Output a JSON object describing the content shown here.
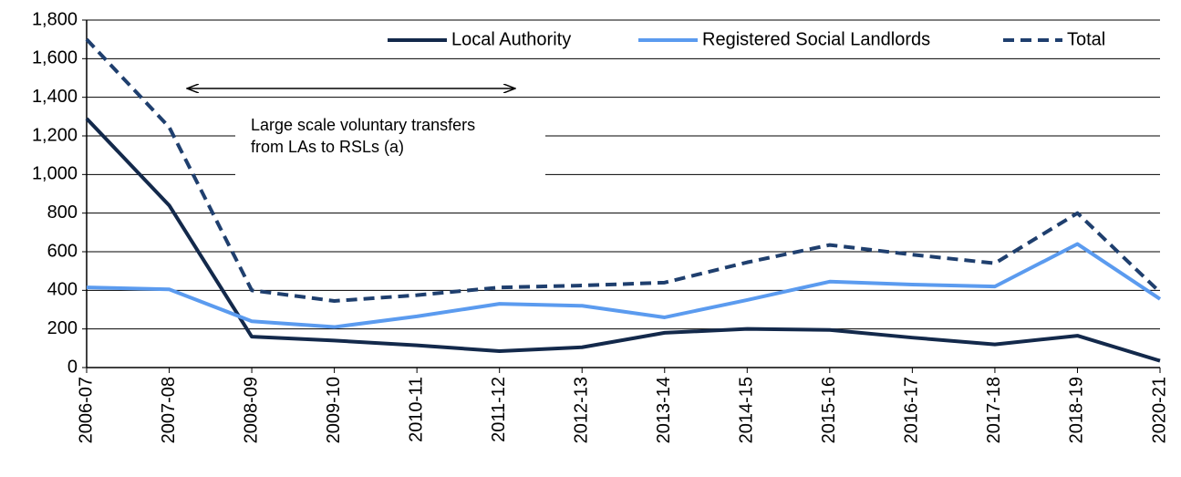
{
  "chart_data": {
    "type": "line",
    "categories": [
      "2006-07",
      "2007-08",
      "2008-09",
      "2009-10",
      "2010-11",
      "2011-12",
      "2012-13",
      "2013-14",
      "2014-15",
      "2015-16",
      "2016-17",
      "2017-18",
      "2018-19",
      "2020-21"
    ],
    "series": [
      {
        "name": "Local Authority",
        "color": "#13294b",
        "dash": false,
        "values": [
          1290,
          840,
          160,
          140,
          115,
          85,
          105,
          180,
          200,
          195,
          155,
          120,
          165,
          35
        ]
      },
      {
        "name": "Registered Social Landlords",
        "color": "#5b9bef",
        "dash": false,
        "values": [
          415,
          405,
          240,
          210,
          265,
          330,
          320,
          260,
          350,
          445,
          430,
          420,
          640,
          355
        ]
      },
      {
        "name": "Total",
        "color": "#1f3f6e",
        "dash": true,
        "values": [
          1700,
          1245,
          400,
          345,
          375,
          415,
          425,
          440,
          545,
          635,
          585,
          540,
          800,
          390
        ]
      }
    ],
    "ylim": [
      0,
      1800
    ],
    "yticks": [
      0,
      {
        "value": 200,
        "label": "200"
      },
      400,
      600,
      800,
      {
        "value": 1000,
        "label": "1,000"
      },
      {
        "value": 1200,
        "label": "1,200"
      },
      {
        "value": 1400,
        "label": "1,400"
      },
      {
        "value": 1600,
        "label": "1,600"
      },
      {
        "value": 1800,
        "label": "1,800"
      }
    ],
    "grid": true,
    "legend": "top-right",
    "annotation": [
      "Large scale voluntary transfers",
      "from LAs to RSLs (a)"
    ]
  }
}
